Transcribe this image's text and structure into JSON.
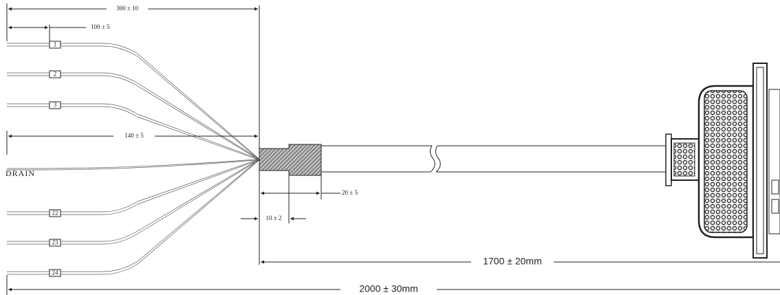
{
  "dimensions": [
    "300 ± 10",
    "100 ± 5",
    "140 ± 5",
    "20 ± 5",
    "10 ± 2",
    "1700 ± 20mm",
    "2000 ± 30mm"
  ],
  "wires": [
    "1",
    "2",
    "3",
    "22",
    "23",
    "24"
  ],
  "drain": "DRAIN"
}
